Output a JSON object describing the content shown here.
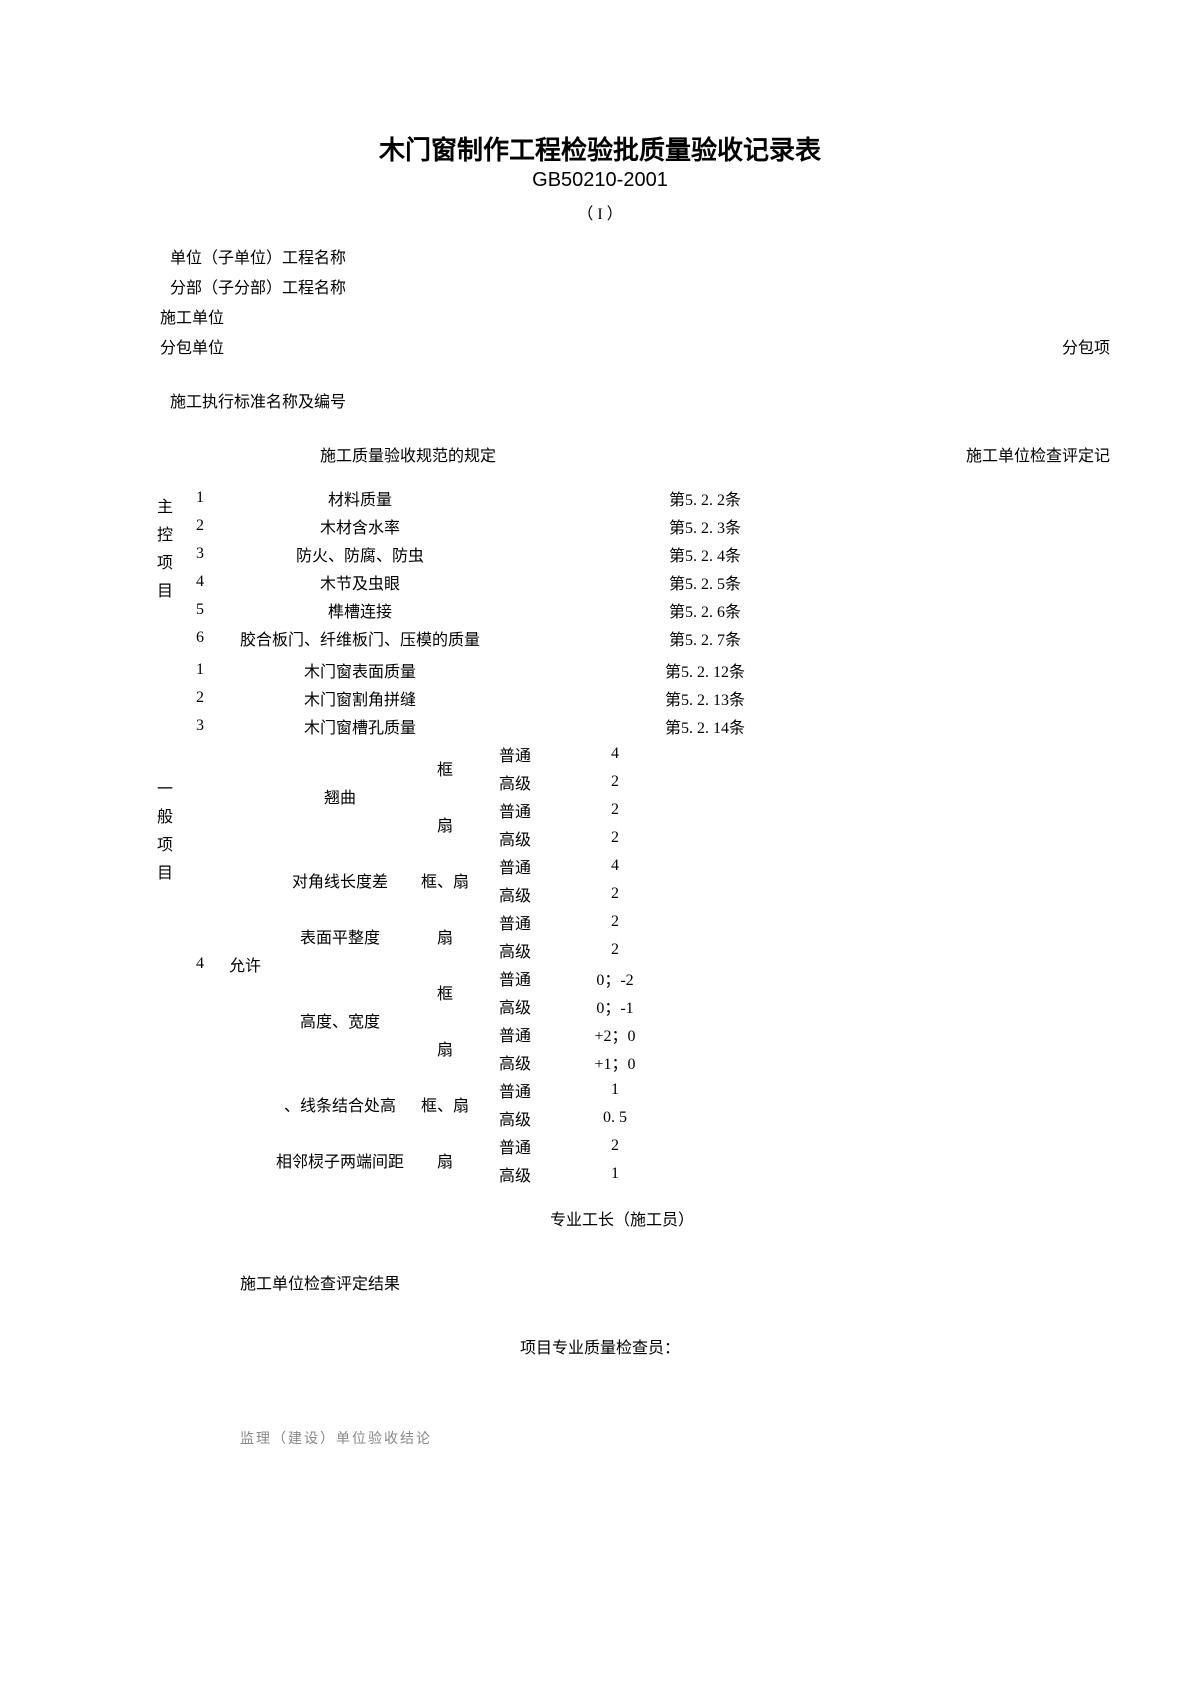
{
  "title": {
    "main": "木门窗制作工程检验批质量验收记录表",
    "sub": "GB50210-2001",
    "roman": "（ I ）"
  },
  "header": {
    "unit_project": "单位（子单位）工程名称",
    "sub_project": "分部（子分部）工程名称",
    "construction_unit": "施工单位",
    "subcontract_unit": "分包单位",
    "subcontract_item": "分包项",
    "exec_standard": "施工执行标准名称及编号"
  },
  "spec_header": {
    "left": "施工质量验收规范的规定",
    "right": "施工单位检查评定记"
  },
  "main_ctrl": {
    "label": [
      "主",
      "控",
      "项",
      "目"
    ],
    "rows": [
      {
        "n": "1",
        "name": "材料质量",
        "clause": "第5. 2. 2条"
      },
      {
        "n": "2",
        "name": "木材含水率",
        "clause": "第5. 2. 3条"
      },
      {
        "n": "3",
        "name": "防火、防腐、防虫",
        "clause": "第5. 2. 4条"
      },
      {
        "n": "4",
        "name": "木节及虫眼",
        "clause": "第5. 2. 5条"
      },
      {
        "n": "5",
        "name": "榫槽连接",
        "clause": "第5. 2. 6条"
      },
      {
        "n": "6",
        "name": "胶合板门、纤维板门、压模的质量",
        "clause": "第5. 2. 7条"
      }
    ]
  },
  "general": {
    "label": [
      "一",
      "般",
      "项",
      "目"
    ],
    "simple_rows": [
      {
        "n": "1",
        "name": "木门窗表面质量",
        "clause": "第5. 2. 12条"
      },
      {
        "n": "2",
        "name": "木门窗割角拼缝",
        "clause": "第5. 2. 13条"
      },
      {
        "n": "3",
        "name": "木门窗槽孔质量",
        "clause": "第5. 2. 14条"
      }
    ],
    "tol_num": "4",
    "tol_label": "允许",
    "tol_items": [
      {
        "name": "翘曲",
        "parts": [
          {
            "part": "框",
            "levels": [
              {
                "lv": "普通",
                "v": "4"
              },
              {
                "lv": "高级",
                "v": "2"
              }
            ]
          },
          {
            "part": "扇",
            "levels": [
              {
                "lv": "普通",
                "v": "2"
              },
              {
                "lv": "高级",
                "v": "2"
              }
            ]
          }
        ]
      },
      {
        "name": "对角线长度差",
        "parts": [
          {
            "part": "框、扇",
            "levels": [
              {
                "lv": "普通",
                "v": "4"
              },
              {
                "lv": "高级",
                "v": "2"
              }
            ]
          }
        ]
      },
      {
        "name": "表面平整度",
        "parts": [
          {
            "part": "扇",
            "levels": [
              {
                "lv": "普通",
                "v": "2"
              },
              {
                "lv": "高级",
                "v": "2"
              }
            ]
          }
        ]
      },
      {
        "name": "高度、宽度",
        "parts": [
          {
            "part": "框",
            "levels": [
              {
                "lv": "普通",
                "v": "0；-2"
              },
              {
                "lv": "高级",
                "v": "0；-1"
              }
            ]
          },
          {
            "part": "扇",
            "levels": [
              {
                "lv": "普通",
                "v": "+2；0"
              },
              {
                "lv": "高级",
                "v": "+1；0"
              }
            ]
          }
        ]
      },
      {
        "name": "、线条结合处高",
        "parts": [
          {
            "part": "框、扇",
            "levels": [
              {
                "lv": "普通",
                "v": "1"
              },
              {
                "lv": "高级",
                "v": "0. 5"
              }
            ]
          }
        ]
      },
      {
        "name": "相邻棂子两端间距",
        "parts": [
          {
            "part": "扇",
            "levels": [
              {
                "lv": "普通",
                "v": "2"
              },
              {
                "lv": "高级",
                "v": "1"
              }
            ]
          }
        ]
      }
    ]
  },
  "footer": {
    "foreman": "专业工长（施工员）",
    "result_label": "施工单位检查评定结果",
    "inspector": "项目专业质量检查员：",
    "monitor": "监理（建设）单位验收结论"
  }
}
